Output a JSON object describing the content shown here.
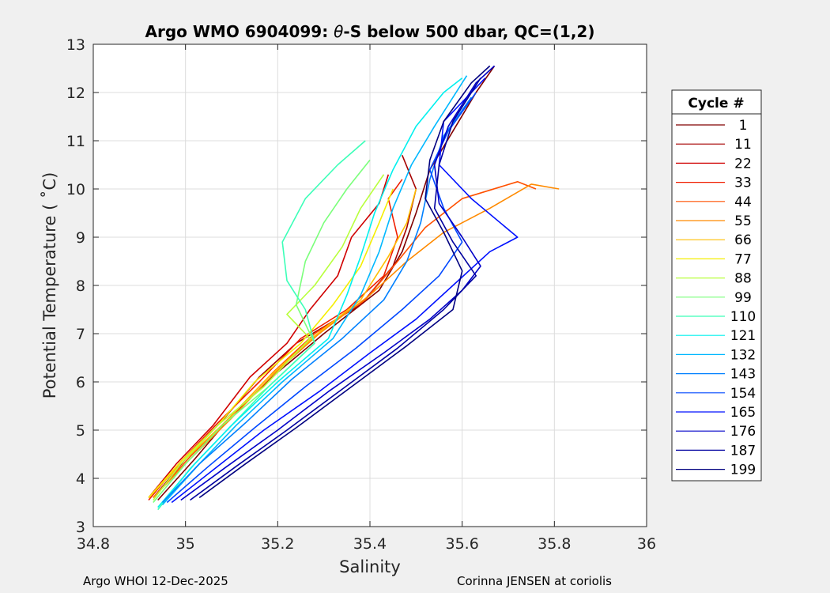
{
  "chart_data": {
    "type": "line",
    "title_prefix": "Argo WMO 6904099: ",
    "title_symbol": "θ",
    "title_suffix": "-S below 500 dbar,  QC=(1,2)",
    "xlabel": "Salinity",
    "ylabel": "Potential Temperature ( ˚C)",
    "xlim": [
      34.8,
      36.0
    ],
    "ylim": [
      3,
      13
    ],
    "xticks": [
      34.8,
      35,
      35.2,
      35.4,
      35.6,
      35.8,
      36
    ],
    "xtick_labels": [
      "34.8",
      "35",
      "35.2",
      "35.4",
      "35.6",
      "35.8",
      "36"
    ],
    "yticks": [
      3,
      4,
      5,
      6,
      7,
      8,
      9,
      10,
      11,
      12,
      13
    ],
    "ytick_labels": [
      "3",
      "4",
      "5",
      "6",
      "7",
      "8",
      "9",
      "10",
      "11",
      "12",
      "13"
    ],
    "grid": true,
    "legend": {
      "title": "Cycle #",
      "placement": "outside-right",
      "entries": [
        {
          "label": "1",
          "color": "#800000"
        },
        {
          "label": "11",
          "color": "#a50000"
        },
        {
          "label": "22",
          "color": "#d00000"
        },
        {
          "label": "33",
          "color": "#f01e00"
        },
        {
          "label": "44",
          "color": "#ff5000"
        },
        {
          "label": "55",
          "color": "#ff8a00"
        },
        {
          "label": "66",
          "color": "#ffbe00"
        },
        {
          "label": "77",
          "color": "#f5ee00"
        },
        {
          "label": "88",
          "color": "#b8ff3c"
        },
        {
          "label": "99",
          "color": "#7aff7a"
        },
        {
          "label": "110",
          "color": "#3cffb8"
        },
        {
          "label": "121",
          "color": "#00f0ee"
        },
        {
          "label": "132",
          "color": "#00b8ff"
        },
        {
          "label": "143",
          "color": "#0080ff"
        },
        {
          "label": "154",
          "color": "#0048ff"
        },
        {
          "label": "165",
          "color": "#0010ff"
        },
        {
          "label": "176",
          "color": "#0000c8"
        },
        {
          "label": "187",
          "color": "#0000a0"
        },
        {
          "label": "199",
          "color": "#000080"
        }
      ]
    },
    "series": [
      {
        "name": "1",
        "points": [
          [
            34.94,
            3.55
          ],
          [
            35.02,
            4.4
          ],
          [
            35.1,
            5.3
          ],
          [
            35.2,
            6.2
          ],
          [
            35.3,
            7.0
          ],
          [
            35.42,
            7.9
          ],
          [
            35.47,
            8.7
          ],
          [
            35.5,
            9.5
          ],
          [
            35.53,
            10.4
          ],
          [
            35.58,
            11.2
          ],
          [
            35.63,
            12.0
          ],
          [
            35.67,
            12.55
          ]
        ]
      },
      {
        "name": "11",
        "points": [
          [
            34.93,
            3.6
          ],
          [
            35.0,
            4.4
          ],
          [
            35.08,
            5.2
          ],
          [
            35.16,
            6.1
          ],
          [
            35.24,
            6.8
          ],
          [
            35.38,
            7.6
          ],
          [
            35.45,
            8.4
          ],
          [
            35.48,
            9.2
          ],
          [
            35.5,
            10.0
          ],
          [
            35.47,
            10.7
          ]
        ]
      },
      {
        "name": "22",
        "points": [
          [
            34.92,
            3.6
          ],
          [
            34.98,
            4.3
          ],
          [
            35.06,
            5.1
          ],
          [
            35.14,
            6.1
          ],
          [
            35.22,
            6.8
          ],
          [
            35.27,
            7.5
          ],
          [
            35.33,
            8.2
          ],
          [
            35.36,
            9.0
          ],
          [
            35.42,
            9.7
          ],
          [
            35.44,
            10.3
          ]
        ]
      },
      {
        "name": "33",
        "points": [
          [
            34.92,
            3.55
          ],
          [
            34.99,
            4.35
          ],
          [
            35.07,
            5.15
          ],
          [
            35.16,
            6.0
          ],
          [
            35.25,
            6.9
          ],
          [
            35.35,
            7.5
          ],
          [
            35.43,
            8.2
          ],
          [
            35.46,
            9.0
          ],
          [
            35.44,
            9.8
          ],
          [
            35.47,
            10.2
          ]
        ]
      },
      {
        "name": "44",
        "points": [
          [
            34.93,
            3.6
          ],
          [
            35.01,
            4.45
          ],
          [
            35.1,
            5.3
          ],
          [
            35.19,
            6.2
          ],
          [
            35.28,
            7.0
          ],
          [
            35.39,
            7.7
          ],
          [
            35.46,
            8.5
          ],
          [
            35.52,
            9.2
          ],
          [
            35.6,
            9.8
          ],
          [
            35.72,
            10.15
          ],
          [
            35.76,
            10.0
          ]
        ]
      },
      {
        "name": "55",
        "points": [
          [
            34.93,
            3.6
          ],
          [
            35.01,
            4.4
          ],
          [
            35.1,
            5.25
          ],
          [
            35.19,
            6.15
          ],
          [
            35.29,
            7.0
          ],
          [
            35.4,
            7.8
          ],
          [
            35.48,
            8.5
          ],
          [
            35.56,
            9.1
          ],
          [
            35.66,
            9.6
          ],
          [
            35.75,
            10.1
          ],
          [
            35.81,
            10.0
          ]
        ]
      },
      {
        "name": "66",
        "points": [
          [
            34.92,
            3.6
          ],
          [
            35.0,
            4.4
          ],
          [
            35.09,
            5.2
          ],
          [
            35.18,
            6.1
          ],
          [
            35.28,
            6.95
          ],
          [
            35.38,
            7.7
          ],
          [
            35.44,
            8.6
          ],
          [
            35.48,
            9.3
          ],
          [
            35.5,
            10.0
          ]
        ]
      },
      {
        "name": "77",
        "points": [
          [
            34.92,
            3.6
          ],
          [
            34.99,
            4.35
          ],
          [
            35.07,
            5.1
          ],
          [
            35.15,
            6.0
          ],
          [
            35.25,
            6.8
          ],
          [
            35.32,
            7.6
          ],
          [
            35.38,
            8.4
          ],
          [
            35.42,
            9.3
          ],
          [
            35.45,
            10.0
          ]
        ]
      },
      {
        "name": "88",
        "points": [
          [
            34.93,
            3.55
          ],
          [
            34.99,
            4.3
          ],
          [
            35.07,
            5.1
          ],
          [
            35.17,
            5.9
          ],
          [
            35.27,
            6.9
          ],
          [
            35.22,
            7.4
          ],
          [
            35.28,
            8.0
          ],
          [
            35.34,
            8.8
          ],
          [
            35.38,
            9.6
          ],
          [
            35.43,
            10.3
          ]
        ]
      },
      {
        "name": "99",
        "points": [
          [
            34.93,
            3.5
          ],
          [
            35.0,
            4.3
          ],
          [
            35.08,
            5.1
          ],
          [
            35.18,
            5.9
          ],
          [
            35.28,
            6.8
          ],
          [
            35.24,
            7.6
          ],
          [
            35.26,
            8.5
          ],
          [
            35.3,
            9.3
          ],
          [
            35.35,
            10.0
          ],
          [
            35.4,
            10.6
          ]
        ]
      },
      {
        "name": "110",
        "points": [
          [
            34.94,
            3.35
          ],
          [
            35.01,
            4.2
          ],
          [
            35.09,
            5.0
          ],
          [
            35.18,
            5.9
          ],
          [
            35.28,
            6.8
          ],
          [
            35.26,
            7.5
          ],
          [
            35.22,
            8.1
          ],
          [
            35.21,
            8.9
          ],
          [
            35.26,
            9.8
          ],
          [
            35.33,
            10.5
          ],
          [
            35.39,
            11.0
          ]
        ]
      },
      {
        "name": "121",
        "points": [
          [
            34.94,
            3.4
          ],
          [
            35.02,
            4.3
          ],
          [
            35.1,
            5.1
          ],
          [
            35.2,
            6.0
          ],
          [
            35.31,
            6.9
          ],
          [
            35.35,
            7.8
          ],
          [
            35.38,
            8.6
          ],
          [
            35.41,
            9.5
          ],
          [
            35.45,
            10.4
          ],
          [
            35.5,
            11.3
          ],
          [
            35.56,
            12.0
          ],
          [
            35.6,
            12.3
          ]
        ]
      },
      {
        "name": "132",
        "points": [
          [
            34.95,
            3.45
          ],
          [
            35.03,
            4.3
          ],
          [
            35.11,
            5.1
          ],
          [
            35.21,
            6.0
          ],
          [
            35.32,
            6.9
          ],
          [
            35.38,
            7.8
          ],
          [
            35.42,
            8.7
          ],
          [
            35.45,
            9.6
          ],
          [
            35.49,
            10.5
          ],
          [
            35.54,
            11.3
          ],
          [
            35.61,
            12.35
          ]
        ]
      },
      {
        "name": "143",
        "points": [
          [
            34.95,
            3.5
          ],
          [
            35.03,
            4.3
          ],
          [
            35.13,
            5.15
          ],
          [
            35.23,
            6.05
          ],
          [
            35.34,
            6.9
          ],
          [
            35.43,
            7.7
          ],
          [
            35.48,
            8.5
          ],
          [
            35.51,
            9.3
          ],
          [
            35.53,
            10.2
          ],
          [
            35.56,
            11.1
          ],
          [
            35.62,
            11.9
          ]
        ]
      },
      {
        "name": "154",
        "points": [
          [
            34.96,
            3.5
          ],
          [
            35.05,
            4.25
          ],
          [
            35.15,
            5.05
          ],
          [
            35.26,
            5.9
          ],
          [
            35.37,
            6.7
          ],
          [
            35.47,
            7.5
          ],
          [
            35.55,
            8.2
          ],
          [
            35.6,
            8.9
          ],
          [
            35.56,
            9.6
          ],
          [
            35.53,
            10.4
          ],
          [
            35.57,
            11.2
          ],
          [
            35.63,
            12.0
          ]
        ]
      },
      {
        "name": "165",
        "points": [
          [
            34.97,
            3.5
          ],
          [
            35.07,
            4.25
          ],
          [
            35.17,
            5.0
          ],
          [
            35.29,
            5.8
          ],
          [
            35.4,
            6.6
          ],
          [
            35.5,
            7.3
          ],
          [
            35.58,
            8.0
          ],
          [
            35.66,
            8.7
          ],
          [
            35.72,
            9.0
          ],
          [
            35.62,
            9.8
          ],
          [
            35.55,
            10.5
          ],
          [
            35.56,
            11.4
          ],
          [
            35.65,
            12.3
          ]
        ]
      },
      {
        "name": "176",
        "points": [
          [
            34.99,
            3.55
          ],
          [
            35.09,
            4.25
          ],
          [
            35.2,
            5.0
          ],
          [
            35.31,
            5.8
          ],
          [
            35.43,
            6.6
          ],
          [
            35.53,
            7.3
          ],
          [
            35.6,
            7.9
          ],
          [
            35.64,
            8.4
          ],
          [
            35.6,
            9.0
          ],
          [
            35.55,
            9.7
          ],
          [
            35.54,
            10.5
          ],
          [
            35.57,
            11.3
          ],
          [
            35.63,
            12.2
          ],
          [
            35.67,
            12.55
          ]
        ]
      },
      {
        "name": "187",
        "points": [
          [
            35.01,
            3.55
          ],
          [
            35.11,
            4.25
          ],
          [
            35.22,
            5.0
          ],
          [
            35.34,
            5.85
          ],
          [
            35.46,
            6.7
          ],
          [
            35.56,
            7.5
          ],
          [
            35.63,
            8.2
          ],
          [
            35.58,
            8.9
          ],
          [
            35.54,
            9.6
          ],
          [
            35.55,
            10.5
          ],
          [
            35.58,
            11.4
          ],
          [
            35.64,
            12.3
          ]
        ]
      },
      {
        "name": "199",
        "points": [
          [
            35.03,
            3.6
          ],
          [
            35.13,
            4.3
          ],
          [
            35.24,
            5.05
          ],
          [
            35.36,
            5.9
          ],
          [
            35.48,
            6.75
          ],
          [
            35.58,
            7.5
          ],
          [
            35.6,
            8.3
          ],
          [
            35.56,
            9.1
          ],
          [
            35.52,
            9.8
          ],
          [
            35.53,
            10.6
          ],
          [
            35.56,
            11.4
          ],
          [
            35.62,
            12.2
          ],
          [
            35.66,
            12.55
          ]
        ]
      }
    ]
  },
  "footer": {
    "left": "Argo WHOI 12-Dec-2025",
    "right": "Corinna JENSEN at coriolis"
  }
}
